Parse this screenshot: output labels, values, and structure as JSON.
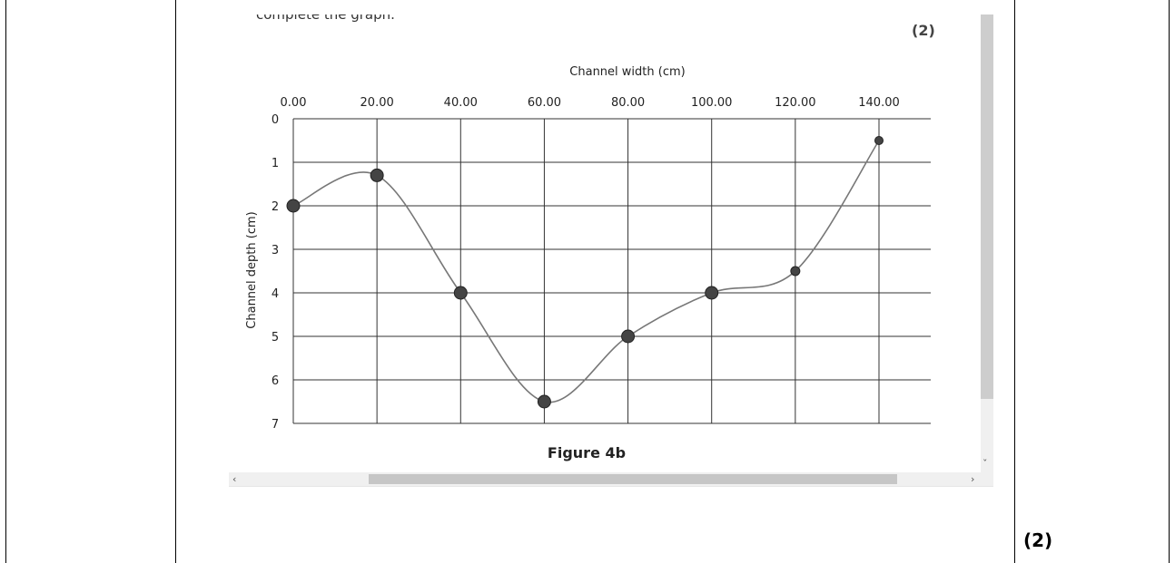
{
  "page": {
    "partial_heading": "complete the graph.",
    "marks_inner": "(2)",
    "marks_outer": "(2)",
    "arrows": {
      "left": "‹",
      "right": "›",
      "down": "ˇ"
    }
  },
  "chart_data": {
    "type": "line",
    "xlabel": "Channel width (cm)",
    "ylabel": "Channel depth (cm)",
    "caption": "Figure 4b",
    "x_ticks": [
      "0.00",
      "20.00",
      "40.00",
      "60.00",
      "80.00",
      "100.00",
      "120.00",
      "140.00"
    ],
    "y_ticks": [
      "0",
      "1",
      "2",
      "3",
      "4",
      "5",
      "6",
      "7"
    ],
    "xlim": [
      0,
      150
    ],
    "ylim": [
      0,
      7
    ],
    "y_inverted": true,
    "x_axis_position": "top",
    "grid": true,
    "series": [
      {
        "x": [
          0,
          20,
          40,
          60,
          80,
          100,
          120,
          140
        ],
        "y": [
          2,
          1.3,
          4,
          6.5,
          5,
          4,
          3.5,
          0.5
        ]
      }
    ],
    "colors": {
      "line": "#777777",
      "marker": "#444444",
      "grid": "#333333"
    }
  }
}
